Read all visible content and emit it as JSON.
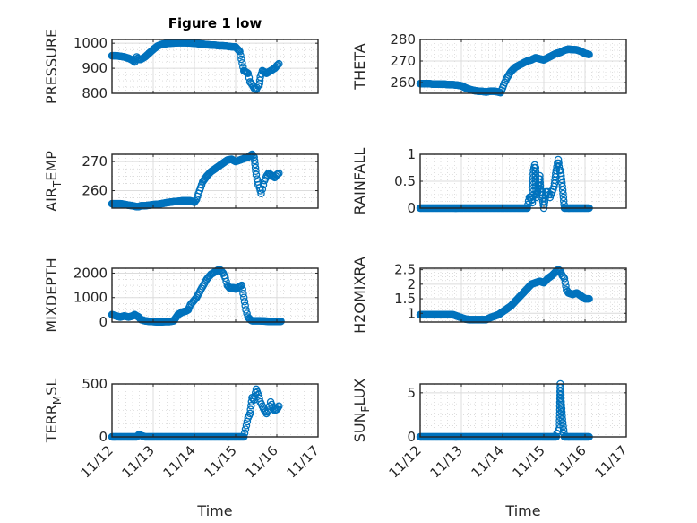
{
  "figure": {
    "title": "Figure 1 low",
    "marker_color": "#0072BD",
    "xlabel": "Time"
  },
  "chart_data": [
    {
      "type": "scatter",
      "title": "Figure 1 low",
      "ylabel": "PRESSURE",
      "ylabel_sub": null,
      "xlabel": "",
      "xlim": [
        0,
        5
      ],
      "ylim": [
        800,
        1015
      ],
      "xticks": [
        0,
        1,
        2,
        3,
        4,
        5
      ],
      "xtick_labels": [
        "11/12",
        "11/13",
        "11/14",
        "11/15",
        "11/16",
        "11/17"
      ],
      "yticks": [
        800,
        900,
        1000
      ],
      "ytick_labels": [
        "800",
        "900",
        "1000"
      ],
      "grid": true,
      "minor_grid": true,
      "x": [
        0.0,
        0.1,
        0.2,
        0.3,
        0.4,
        0.5,
        0.55,
        0.6,
        0.65,
        0.7,
        0.75,
        0.8,
        0.9,
        1.0,
        1.1,
        1.2,
        1.3,
        1.4,
        1.5,
        1.6,
        1.7,
        1.8,
        1.9,
        2.0,
        2.1,
        2.2,
        2.3,
        2.4,
        2.5,
        2.6,
        2.7,
        2.8,
        2.9,
        3.0,
        3.1,
        3.2,
        3.3,
        3.35,
        3.4,
        3.45,
        3.5,
        3.52,
        3.55,
        3.58,
        3.6,
        3.65,
        3.7,
        3.75,
        3.8,
        3.85,
        3.9,
        3.95,
        4.0,
        4.05
      ],
      "y": [
        950,
        950,
        948,
        945,
        940,
        932,
        925,
        945,
        935,
        935,
        940,
        945,
        960,
        975,
        988,
        995,
        998,
        1000,
        1001,
        1002,
        1002,
        1002,
        1001,
        1000,
        998,
        996,
        994,
        993,
        992,
        990,
        990,
        988,
        986,
        985,
        967,
        890,
        880,
        845,
        835,
        820,
        815,
        822,
        830,
        838,
        865,
        890,
        885,
        880,
        885,
        890,
        895,
        900,
        910,
        918
      ]
    },
    {
      "type": "scatter",
      "ylabel": "THETA",
      "ylabel_sub": null,
      "xlim": [
        0,
        5
      ],
      "ylim": [
        255,
        280
      ],
      "xticks": [
        0,
        1,
        2,
        3,
        4,
        5
      ],
      "xtick_labels": [
        "11/12",
        "11/13",
        "11/14",
        "11/15",
        "11/16",
        "11/17"
      ],
      "yticks": [
        260,
        270,
        280
      ],
      "ytick_labels": [
        "260",
        "270",
        "280"
      ],
      "grid": true,
      "minor_grid": true,
      "x": [
        0.0,
        0.1,
        0.2,
        0.3,
        0.4,
        0.5,
        0.6,
        0.7,
        0.8,
        0.9,
        1.0,
        1.1,
        1.2,
        1.3,
        1.4,
        1.5,
        1.6,
        1.7,
        1.8,
        1.9,
        1.95,
        2.0,
        2.05,
        2.1,
        2.15,
        2.2,
        2.3,
        2.4,
        2.5,
        2.6,
        2.7,
        2.8,
        2.9,
        3.0,
        3.1,
        3.2,
        3.3,
        3.4,
        3.5,
        3.6,
        3.7,
        3.8,
        3.9,
        4.0,
        4.1
      ],
      "y": [
        259.5,
        259.5,
        259.5,
        259.3,
        259.3,
        259.2,
        259.2,
        259.0,
        259.0,
        258.8,
        258.5,
        257.5,
        256.8,
        256.3,
        256.0,
        255.9,
        255.6,
        256.0,
        256.0,
        255.6,
        255.3,
        257.5,
        260.0,
        262.0,
        263.5,
        265.0,
        267.0,
        268.0,
        269.0,
        270.0,
        270.5,
        271.5,
        271.0,
        270.5,
        271.5,
        272.5,
        273.5,
        274.0,
        275.0,
        275.5,
        275.3,
        275.2,
        274.5,
        273.5,
        273.0
      ]
    },
    {
      "type": "scatter",
      "ylabel": "AIR",
      "ylabel_sub": "T",
      "ylabel_after": "EMP",
      "xlim": [
        0,
        5
      ],
      "ylim": [
        254,
        272.5
      ],
      "xticks": [
        0,
        1,
        2,
        3,
        4,
        5
      ],
      "xtick_labels": [
        "11/12",
        "11/13",
        "11/14",
        "11/15",
        "11/16",
        "11/17"
      ],
      "yticks": [
        260,
        270
      ],
      "ytick_labels": [
        "260",
        "270"
      ],
      "grid": true,
      "minor_grid": true,
      "x": [
        0.0,
        0.1,
        0.2,
        0.3,
        0.4,
        0.5,
        0.6,
        0.65,
        0.7,
        0.8,
        0.9,
        1.0,
        1.1,
        1.2,
        1.3,
        1.4,
        1.5,
        1.6,
        1.7,
        1.8,
        1.9,
        2.0,
        2.05,
        2.1,
        2.15,
        2.2,
        2.3,
        2.4,
        2.5,
        2.6,
        2.7,
        2.8,
        2.9,
        3.0,
        3.1,
        3.2,
        3.3,
        3.35,
        3.4,
        3.45,
        3.5,
        3.52,
        3.55,
        3.58,
        3.6,
        3.62,
        3.65,
        3.7,
        3.75,
        3.8,
        3.85,
        3.9,
        3.95,
        4.0,
        4.05
      ],
      "y": [
        255.5,
        255.5,
        255.5,
        255.3,
        255.0,
        254.8,
        254.5,
        254.5,
        254.8,
        254.8,
        255.0,
        255.2,
        255.3,
        255.5,
        255.8,
        256.0,
        256.2,
        256.3,
        256.5,
        256.5,
        256.5,
        256.0,
        257.0,
        259.0,
        261.0,
        263.0,
        265.0,
        266.5,
        267.5,
        268.5,
        269.5,
        270.5,
        270.8,
        270.0,
        270.5,
        271.0,
        271.5,
        272.0,
        272.5,
        271.5,
        265.5,
        264.0,
        262.0,
        261.0,
        260.0,
        259.0,
        260.5,
        263.5,
        265.0,
        266.0,
        265.5,
        265.0,
        264.5,
        265.5,
        266.0
      ]
    },
    {
      "type": "scatter",
      "ylabel": "RAINFALL",
      "ylabel_sub": null,
      "xlim": [
        0,
        5
      ],
      "ylim": [
        0,
        1
      ],
      "xticks": [
        0,
        1,
        2,
        3,
        4,
        5
      ],
      "xtick_labels": [
        "11/12",
        "11/13",
        "11/14",
        "11/15",
        "11/16",
        "11/17"
      ],
      "yticks": [
        0,
        0.5,
        1
      ],
      "ytick_labels": [
        "0",
        "0.5",
        "1"
      ],
      "grid": true,
      "minor_grid": true,
      "x": [
        0.0,
        0.2,
        0.4,
        0.6,
        0.8,
        1.0,
        1.2,
        1.4,
        1.6,
        1.8,
        2.0,
        2.2,
        2.4,
        2.6,
        2.65,
        2.7,
        2.72,
        2.75,
        2.78,
        2.8,
        2.82,
        2.85,
        2.9,
        2.92,
        2.95,
        3.0,
        3.05,
        3.1,
        3.15,
        3.2,
        3.25,
        3.3,
        3.35,
        3.38,
        3.4,
        3.42,
        3.45,
        3.5,
        3.55,
        3.6,
        3.7,
        3.8,
        3.9,
        4.0,
        4.1
      ],
      "y": [
        0,
        0,
        0,
        0,
        0,
        0,
        0,
        0,
        0,
        0,
        0,
        0,
        0,
        0,
        0.2,
        0.2,
        0.1,
        0.7,
        0.8,
        0.75,
        0.2,
        0.3,
        0.6,
        0.3,
        0.3,
        0,
        0.3,
        0.3,
        0.2,
        0.3,
        0.4,
        0.7,
        0.9,
        0.7,
        0.7,
        0.6,
        0.4,
        0,
        0,
        0,
        0,
        0,
        0,
        0,
        0
      ]
    },
    {
      "type": "scatter",
      "ylabel": "MIXDEPTH",
      "ylabel_sub": null,
      "xlim": [
        0,
        5
      ],
      "ylim": [
        0,
        2200
      ],
      "xticks": [
        0,
        1,
        2,
        3,
        4,
        5
      ],
      "xtick_labels": [
        "11/12",
        "11/13",
        "11/14",
        "11/15",
        "11/16",
        "11/17"
      ],
      "yticks": [
        0,
        1000,
        2000
      ],
      "ytick_labels": [
        "0",
        "1000",
        "2000"
      ],
      "grid": true,
      "minor_grid": true,
      "x": [
        0.0,
        0.1,
        0.2,
        0.3,
        0.4,
        0.5,
        0.55,
        0.6,
        0.65,
        0.7,
        0.8,
        0.9,
        1.0,
        1.1,
        1.2,
        1.3,
        1.4,
        1.5,
        1.6,
        1.7,
        1.8,
        1.85,
        1.9,
        1.95,
        2.0,
        2.05,
        2.1,
        2.15,
        2.2,
        2.25,
        2.3,
        2.35,
        2.4,
        2.45,
        2.5,
        2.55,
        2.6,
        2.65,
        2.7,
        2.75,
        2.8,
        2.85,
        2.9,
        2.95,
        3.0,
        3.05,
        3.1,
        3.15,
        3.2,
        3.25,
        3.3,
        3.35,
        3.4,
        3.45,
        3.5,
        3.55,
        3.6,
        3.7,
        3.8,
        3.9,
        4.0,
        4.1
      ],
      "y": [
        300,
        250,
        200,
        250,
        200,
        250,
        300,
        250,
        200,
        100,
        50,
        30,
        20,
        10,
        10,
        20,
        20,
        50,
        300,
        400,
        450,
        500,
        700,
        800,
        900,
        1000,
        1150,
        1300,
        1450,
        1600,
        1750,
        1850,
        1950,
        2000,
        2050,
        2100,
        2150,
        2100,
        2000,
        1800,
        1500,
        1400,
        1400,
        1400,
        1350,
        1400,
        1450,
        1500,
        1000,
        500,
        200,
        100,
        50,
        50,
        50,
        50,
        50,
        40,
        30,
        30,
        30,
        30
      ]
    },
    {
      "type": "scatter",
      "ylabel": "H2OMIXRA",
      "ylabel_sub": null,
      "xlim": [
        0,
        5
      ],
      "ylim": [
        0.7,
        2.55
      ],
      "xticks": [
        0,
        1,
        2,
        3,
        4,
        5
      ],
      "xtick_labels": [
        "11/12",
        "11/13",
        "11/14",
        "11/15",
        "11/16",
        "11/17"
      ],
      "yticks": [
        1,
        1.5,
        2,
        2.5
      ],
      "ytick_labels": [
        "1",
        "1.5",
        "2",
        "2.5"
      ],
      "grid": true,
      "minor_grid": true,
      "x": [
        0.0,
        0.1,
        0.2,
        0.3,
        0.4,
        0.5,
        0.6,
        0.7,
        0.8,
        0.9,
        1.0,
        1.1,
        1.2,
        1.3,
        1.4,
        1.5,
        1.6,
        1.7,
        1.8,
        1.9,
        2.0,
        2.1,
        2.2,
        2.3,
        2.4,
        2.5,
        2.6,
        2.7,
        2.8,
        2.9,
        3.0,
        3.1,
        3.2,
        3.3,
        3.35,
        3.4,
        3.45,
        3.5,
        3.55,
        3.6,
        3.7,
        3.8,
        3.9,
        4.0,
        4.1
      ],
      "y": [
        0.95,
        0.95,
        0.95,
        0.95,
        0.95,
        0.95,
        0.95,
        0.95,
        0.95,
        0.9,
        0.85,
        0.8,
        0.78,
        0.78,
        0.78,
        0.78,
        0.78,
        0.85,
        0.9,
        0.95,
        1.05,
        1.15,
        1.25,
        1.4,
        1.55,
        1.7,
        1.85,
        2.0,
        2.05,
        2.1,
        2.05,
        2.2,
        2.3,
        2.45,
        2.5,
        2.45,
        2.3,
        2.2,
        1.8,
        1.7,
        1.65,
        1.7,
        1.6,
        1.5,
        1.5
      ]
    },
    {
      "type": "scatter",
      "ylabel": "TERR",
      "ylabel_sub": "M",
      "ylabel_after": "SL",
      "xlim": [
        0,
        5
      ],
      "ylim": [
        0,
        500
      ],
      "xticks": [
        0,
        1,
        2,
        3,
        4,
        5
      ],
      "xtick_labels": [
        "11/12",
        "11/13",
        "11/14",
        "11/15",
        "11/16",
        "11/17"
      ],
      "yticks": [
        0,
        500
      ],
      "ytick_labels": [
        "0",
        "500"
      ],
      "grid": true,
      "minor_grid": true,
      "x": [
        0.0,
        0.2,
        0.4,
        0.6,
        0.65,
        0.8,
        1.0,
        1.2,
        1.4,
        1.6,
        1.8,
        2.0,
        2.2,
        2.4,
        2.6,
        2.8,
        3.0,
        3.2,
        3.3,
        3.35,
        3.4,
        3.45,
        3.5,
        3.55,
        3.6,
        3.65,
        3.7,
        3.75,
        3.8,
        3.85,
        3.9,
        3.95,
        4.0,
        4.05
      ],
      "y": [
        0,
        0,
        0,
        0,
        20,
        0,
        0,
        0,
        0,
        0,
        0,
        0,
        0,
        0,
        0,
        0,
        0,
        0,
        180,
        220,
        370,
        350,
        450,
        400,
        330,
        290,
        250,
        220,
        250,
        330,
        280,
        250,
        260,
        290
      ]
    },
    {
      "type": "scatter",
      "ylabel": "SUN",
      "ylabel_sub": "F",
      "ylabel_after": "LUX",
      "xlim": [
        0,
        5
      ],
      "ylim": [
        0,
        6
      ],
      "xticks": [
        0,
        1,
        2,
        3,
        4,
        5
      ],
      "xtick_labels": [
        "11/12",
        "11/13",
        "11/14",
        "11/15",
        "11/16",
        "11/17"
      ],
      "yticks": [
        0,
        5
      ],
      "ytick_labels": [
        "0",
        "5"
      ],
      "grid": true,
      "minor_grid": true,
      "x": [
        0.0,
        0.2,
        0.4,
        0.6,
        0.8,
        1.0,
        1.2,
        1.4,
        1.6,
        1.8,
        2.0,
        2.2,
        2.4,
        2.6,
        2.8,
        3.0,
        3.1,
        3.2,
        3.3,
        3.32,
        3.35,
        3.38,
        3.4,
        3.42,
        3.45,
        3.5,
        3.6,
        3.7,
        3.8,
        3.9,
        4.0,
        4.1
      ],
      "y": [
        0,
        0,
        0,
        0,
        0,
        0,
        0,
        0,
        0,
        0,
        0,
        0,
        0,
        0,
        0,
        0,
        0,
        0,
        0,
        0.4,
        0.7,
        1.0,
        6.0,
        4.0,
        2.0,
        0,
        0,
        0,
        0,
        0,
        0,
        0
      ]
    }
  ]
}
